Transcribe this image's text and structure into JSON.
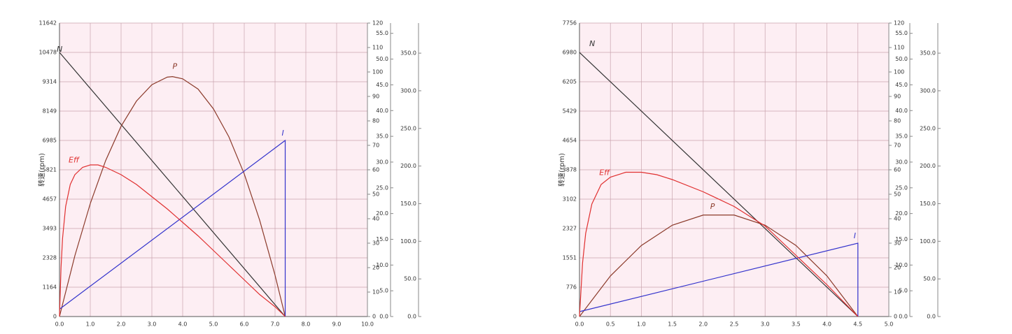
{
  "chart_data": [
    {
      "type": "line",
      "ylabel": "转速(rpm)",
      "grid": true,
      "plot_background": "#fdeef3",
      "xlim": [
        0,
        10
      ],
      "xticks": [
        {
          "value": 0,
          "label": "0.0"
        },
        {
          "value": 1,
          "label": "1.0"
        },
        {
          "value": 2,
          "label": "2.0"
        },
        {
          "value": 3,
          "label": "3.0"
        },
        {
          "value": 4,
          "label": "4.0"
        },
        {
          "value": 5,
          "label": "5.0"
        },
        {
          "value": 6,
          "label": "6.0"
        },
        {
          "value": 7,
          "label": "7.0"
        },
        {
          "value": 8,
          "label": "8.0"
        },
        {
          "value": 9,
          "label": "9.0"
        },
        {
          "value": 10,
          "label": "10.0"
        }
      ],
      "ylim": [
        0,
        11642
      ],
      "yticks": [
        0,
        1164,
        2328,
        3493,
        4657,
        5821,
        6985,
        8149,
        9314,
        10478,
        11642
      ],
      "y2lim": [
        0,
        120
      ],
      "y2ticks": [
        0,
        10,
        20,
        30,
        40,
        50,
        60,
        70,
        80,
        90,
        100,
        110,
        120
      ],
      "y3lim": [
        0,
        57
      ],
      "y3ticks": [
        {
          "value": 0,
          "label": "0.0"
        },
        {
          "value": 5,
          "label": "5.0"
        },
        {
          "value": 10,
          "label": "10.0"
        },
        {
          "value": 15,
          "label": "15.0"
        },
        {
          "value": 20,
          "label": "20.0"
        },
        {
          "value": 25,
          "label": "25.0"
        },
        {
          "value": 30,
          "label": "30.0"
        },
        {
          "value": 35,
          "label": "35.0"
        },
        {
          "value": 40,
          "label": "40.0"
        },
        {
          "value": 45,
          "label": "45.0"
        },
        {
          "value": 50,
          "label": "50.0"
        },
        {
          "value": 55,
          "label": "55.0"
        }
      ],
      "y4lim": [
        0,
        390
      ],
      "y4ticks": [
        {
          "value": 0,
          "label": "0.0"
        },
        {
          "value": 50,
          "label": "50.0"
        },
        {
          "value": 100,
          "label": "100.0"
        },
        {
          "value": 150,
          "label": "150.0"
        },
        {
          "value": 200,
          "label": "200.0"
        },
        {
          "value": 250,
          "label": "250.0"
        },
        {
          "value": 300,
          "label": "300.0"
        },
        {
          "value": 350,
          "label": "350.0"
        }
      ],
      "series": [
        {
          "name": "N",
          "color": "#333333",
          "axis": "y",
          "x": [
            0,
            7.33
          ],
          "values": [
            10478,
            0
          ]
        },
        {
          "name": "P",
          "color": "#8b3a2a",
          "axis": "y2",
          "x": [
            0,
            0.5,
            1,
            1.5,
            2,
            2.5,
            3,
            3.5,
            3.67,
            4,
            4.5,
            5,
            5.5,
            6,
            6.5,
            7,
            7.33
          ],
          "values": [
            0,
            24.9,
            46.2,
            63.8,
            77.8,
            88.1,
            94.8,
            97.9,
            98.1,
            97.2,
            93.0,
            84.9,
            73.5,
            58.3,
            39.4,
            16.9,
            0
          ]
        },
        {
          "name": "I",
          "color": "#3333cc",
          "axis": "y2",
          "x": [
            0,
            7.33,
            7.33
          ],
          "values": [
            3,
            72,
            0
          ]
        },
        {
          "name": "Eff",
          "color": "#e03030",
          "axis": "y2",
          "x": [
            0,
            0.05,
            0.1,
            0.2,
            0.35,
            0.5,
            0.75,
            1,
            1.25,
            1.5,
            2,
            2.5,
            3,
            3.5,
            4,
            4.5,
            5,
            5.5,
            6,
            6.5,
            7,
            7.33
          ],
          "values": [
            0,
            20,
            32,
            45,
            54,
            58,
            61,
            62,
            62,
            61,
            58,
            54,
            49,
            44,
            38.5,
            33,
            27,
            21,
            15,
            9,
            4,
            0
          ]
        }
      ]
    },
    {
      "type": "line",
      "ylabel": "转速(rpm)",
      "grid": true,
      "plot_background": "#fdeef3",
      "xlim": [
        0,
        5
      ],
      "xticks": [
        {
          "value": 0,
          "label": "0.0"
        },
        0.5,
        {
          "value": 1,
          "label": "1.0"
        },
        1.5,
        {
          "value": 2,
          "label": "2.0"
        },
        2.5,
        {
          "value": 3,
          "label": "3.0"
        },
        3.5,
        {
          "value": 4,
          "label": "4.0"
        },
        4.5,
        {
          "value": 5,
          "label": "5.0"
        }
      ],
      "ylim": [
        0,
        7756
      ],
      "yticks": [
        0,
        776,
        1551,
        2327,
        3102,
        3878,
        4654,
        5429,
        6205,
        6980,
        7756
      ],
      "y2lim": [
        0,
        120
      ],
      "y2ticks": [
        0,
        10,
        20,
        30,
        40,
        50,
        60,
        70,
        80,
        90,
        100,
        110,
        120
      ],
      "y3lim": [
        0,
        57
      ],
      "y3ticks": [
        {
          "value": 0,
          "label": "0.0"
        },
        {
          "value": 5,
          "label": "5.0"
        },
        {
          "value": 10,
          "label": "10.0"
        },
        {
          "value": 15,
          "label": "15.0"
        },
        {
          "value": 20,
          "label": "20.0"
        },
        {
          "value": 25,
          "label": "25.0"
        },
        {
          "value": 30,
          "label": "30.0"
        },
        {
          "value": 35,
          "label": "35.0"
        },
        {
          "value": 40,
          "label": "40.0"
        },
        {
          "value": 45,
          "label": "45.0"
        },
        {
          "value": 50,
          "label": "50.0"
        },
        {
          "value": 55,
          "label": "55.0"
        }
      ],
      "y4lim": [
        0,
        390
      ],
      "y4ticks": [
        {
          "value": 0,
          "label": "0.0"
        },
        {
          "value": 50,
          "label": "50.0"
        },
        {
          "value": 100,
          "label": "100.0"
        },
        {
          "value": 150,
          "label": "150.0"
        },
        {
          "value": 200,
          "label": "200.0"
        },
        {
          "value": 250,
          "label": "250.0"
        },
        {
          "value": 300,
          "label": "300.0"
        },
        {
          "value": 350,
          "label": "350.0"
        }
      ],
      "series": [
        {
          "name": "N",
          "color": "#333333",
          "axis": "y",
          "x": [
            0,
            4.5
          ],
          "values": [
            6980,
            0
          ]
        },
        {
          "name": "P",
          "color": "#8b3a2a",
          "axis": "y2",
          "x": [
            0,
            0.5,
            1,
            1.5,
            2,
            2.5,
            3,
            3.5,
            4,
            4.5
          ],
          "values": [
            0,
            16.6,
            29.05,
            37.35,
            41.5,
            41.5,
            37.35,
            29.05,
            16.6,
            0
          ]
        },
        {
          "name": "I",
          "color": "#3333cc",
          "axis": "y2",
          "x": [
            0,
            4.5,
            4.5
          ],
          "values": [
            2,
            30,
            0
          ]
        },
        {
          "name": "Eff",
          "color": "#e03030",
          "axis": "y2",
          "x": [
            0,
            0.05,
            0.1,
            0.2,
            0.35,
            0.5,
            0.75,
            1,
            1.25,
            1.5,
            2,
            2.5,
            3,
            3.5,
            4,
            4.5
          ],
          "values": [
            0,
            22,
            34,
            46,
            54,
            57,
            59,
            59,
            58,
            56,
            51,
            45,
            37,
            25,
            13,
            0
          ]
        }
      ]
    }
  ]
}
